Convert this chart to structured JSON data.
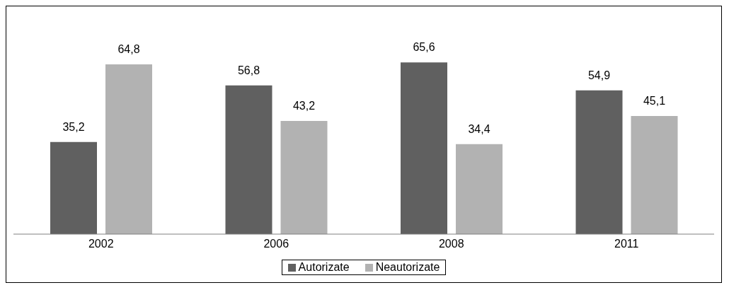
{
  "chart_data": {
    "type": "bar",
    "categories": [
      "2002",
      "2006",
      "2008",
      "2011"
    ],
    "series": [
      {
        "name": "Autorizate",
        "color": "#606060",
        "values": [
          35.2,
          56.8,
          65.6,
          54.9
        ],
        "value_labels": [
          "35,2",
          "56,8",
          "65,6",
          "54,9"
        ]
      },
      {
        "name": "Neautorizate",
        "color": "#b2b2b2",
        "values": [
          64.8,
          43.2,
          34.4,
          45.1
        ],
        "value_labels": [
          "64,8",
          "43,2",
          "34,4",
          "45,1"
        ]
      }
    ],
    "legend": "bottom",
    "grid": false
  }
}
